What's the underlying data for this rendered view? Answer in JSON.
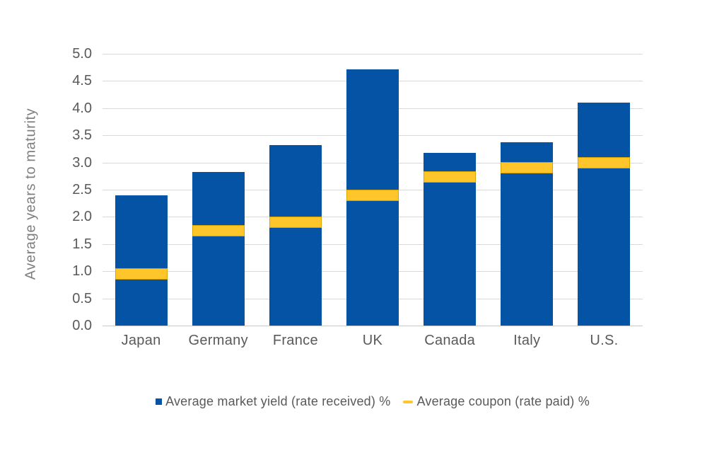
{
  "chart_data": {
    "type": "bar",
    "title": "",
    "ylabel": "Average years to maturity",
    "xlabel": "",
    "ylim": [
      0.0,
      5.0
    ],
    "ytick_step": 0.5,
    "yticks": [
      "5.0",
      "4.5",
      "4.0",
      "3.5",
      "3.0",
      "2.5",
      "2.0",
      "1.5",
      "1.0",
      "0.5",
      "0.0"
    ],
    "grid": true,
    "legend_position": "bottom",
    "categories": [
      "Japan",
      "Germany",
      "France",
      "UK",
      "Canada",
      "Italy",
      "U.S."
    ],
    "series": [
      {
        "name": "Average market yield (rate received) %",
        "type": "bar",
        "marker": "square",
        "color": "#0553A5",
        "values": [
          2.39,
          2.83,
          3.32,
          4.72,
          3.18,
          3.37,
          4.1
        ]
      },
      {
        "name": "Average coupon (rate paid) %",
        "type": "dash-marker",
        "marker": "dash",
        "color": "#FFC62B",
        "border_color": "#D9A300",
        "values": [
          0.95,
          1.75,
          1.9,
          2.4,
          2.73,
          2.9,
          3.0
        ]
      }
    ],
    "colors": {
      "grid": "#D9D9D9",
      "axis_line": "#C9C9C9",
      "tick_text": "#595959",
      "axis_title_text": "#7E7E7E",
      "legend_text": "#595959"
    }
  }
}
